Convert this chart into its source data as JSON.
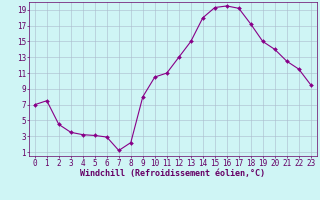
{
  "x": [
    0,
    1,
    2,
    3,
    4,
    5,
    6,
    7,
    8,
    9,
    10,
    11,
    12,
    13,
    14,
    15,
    16,
    17,
    18,
    19,
    20,
    21,
    22,
    23
  ],
  "y": [
    7,
    7.5,
    4.5,
    3.5,
    3.2,
    3.1,
    2.9,
    1.2,
    2.2,
    8,
    10.5,
    11,
    13,
    15,
    18,
    19.3,
    19.5,
    19.2,
    17.2,
    15,
    14,
    12.5,
    11.5,
    9.5
  ],
  "line_color": "#880088",
  "marker": "D",
  "marker_size": 2.0,
  "bg_color": "#cff5f5",
  "grid_color": "#aabbcc",
  "xlabel": "Windchill (Refroidissement éolien,°C)",
  "xlabel_fontsize": 6.0,
  "yticks": [
    1,
    3,
    5,
    7,
    9,
    11,
    13,
    15,
    17,
    19
  ],
  "xticks": [
    0,
    1,
    2,
    3,
    4,
    5,
    6,
    7,
    8,
    9,
    10,
    11,
    12,
    13,
    14,
    15,
    16,
    17,
    18,
    19,
    20,
    21,
    22,
    23
  ],
  "xlim": [
    -0.5,
    23.5
  ],
  "ylim": [
    0.5,
    20
  ],
  "tick_fontsize": 5.5,
  "line_width": 0.8,
  "text_color": "#660066"
}
